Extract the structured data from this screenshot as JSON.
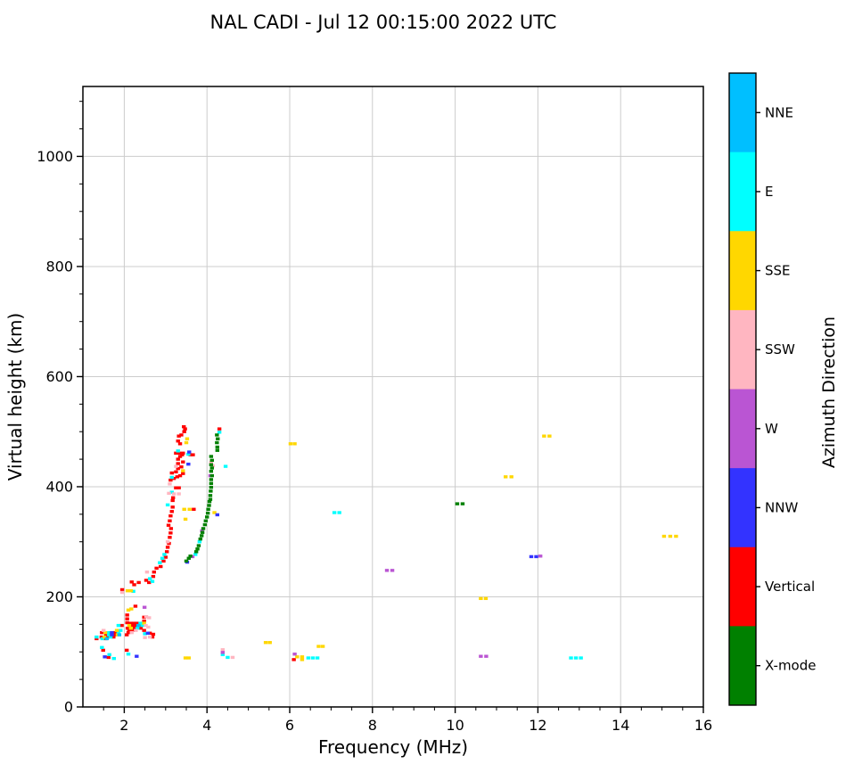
{
  "title": "NAL CADI - Jul 12 00:15:00 2022 UTC",
  "chart_data": {
    "type": "scatter",
    "title": "NAL CADI - Jul 12 00:15:00 2022 UTC",
    "xlabel": "Frequency (MHz)",
    "ylabel": "Virtual height (km)",
    "xlim": [
      1,
      16
    ],
    "ylim": [
      0,
      1127
    ],
    "xticks": [
      2,
      4,
      6,
      8,
      10,
      12,
      14,
      16
    ],
    "yticks": [
      0,
      200,
      400,
      600,
      800,
      1000
    ],
    "x_minor_step": 0.5,
    "y_minor_step": 50,
    "grid": true,
    "grid_color": "#cccccc",
    "marker": "square",
    "colorbar": {
      "label": "Azimuth Direction",
      "orientation": "vertical",
      "categories_top_to_bottom": [
        {
          "label": "NNE",
          "color": "#00BFFF"
        },
        {
          "label": "E",
          "color": "#00FFFF"
        },
        {
          "label": "SSE",
          "color": "#FFD700"
        },
        {
          "label": "SSW",
          "color": "#FFB6C1"
        },
        {
          "label": "W",
          "color": "#BA55D3"
        },
        {
          "label": "NNW",
          "color": "#3333FF"
        },
        {
          "label": "Vertical",
          "color": "#FF0000"
        },
        {
          "label": "X-mode",
          "color": "#008000"
        }
      ]
    },
    "series": [
      {
        "name": "Vertical",
        "color": "#FF0000",
        "points": [
          [
            1.95,
            213
          ],
          [
            2.27,
            183
          ],
          [
            2.07,
            167
          ],
          [
            2.07,
            160
          ],
          [
            2.07,
            153
          ],
          [
            2.48,
            163
          ],
          [
            2.48,
            156
          ],
          [
            2.48,
            139
          ],
          [
            2.62,
            134
          ],
          [
            2.7,
            132
          ],
          [
            2.68,
            127
          ],
          [
            2.15,
            152
          ],
          [
            2.23,
            152
          ],
          [
            2.31,
            152
          ],
          [
            2.45,
            152
          ],
          [
            1.94,
            148
          ],
          [
            2.2,
            148
          ],
          [
            2.28,
            148
          ],
          [
            2.36,
            148
          ],
          [
            2.08,
            143
          ],
          [
            2.24,
            143
          ],
          [
            2.4,
            143
          ],
          [
            2.12,
            139
          ],
          [
            2.2,
            139
          ],
          [
            1.46,
            135
          ],
          [
            1.78,
            135
          ],
          [
            2.1,
            135
          ],
          [
            1.56,
            131
          ],
          [
            1.77,
            131
          ],
          [
            2.06,
            131
          ],
          [
            1.45,
            127
          ],
          [
            1.6,
            127
          ],
          [
            1.74,
            127
          ],
          [
            1.33,
            124
          ],
          [
            1.55,
            124
          ],
          [
            1.49,
            103
          ],
          [
            1.62,
            90
          ],
          [
            2.06,
            103
          ],
          [
            2.18,
            227
          ],
          [
            2.24,
            222
          ],
          [
            2.35,
            226
          ],
          [
            2.53,
            230
          ],
          [
            2.6,
            226
          ],
          [
            2.7,
            237
          ],
          [
            2.72,
            245
          ],
          [
            2.78,
            252
          ],
          [
            2.88,
            255
          ],
          [
            2.95,
            265
          ],
          [
            3.0,
            272
          ],
          [
            3.03,
            282
          ],
          [
            3.05,
            290
          ],
          [
            3.08,
            297
          ],
          [
            3.1,
            308
          ],
          [
            3.12,
            316
          ],
          [
            3.13,
            324
          ],
          [
            3.07,
            330
          ],
          [
            3.1,
            338
          ],
          [
            3.12,
            347
          ],
          [
            3.15,
            355
          ],
          [
            3.17,
            363
          ],
          [
            3.17,
            375
          ],
          [
            3.18,
            380
          ],
          [
            3.68,
            359
          ],
          [
            3.25,
            398
          ],
          [
            3.32,
            398
          ],
          [
            3.12,
            412
          ],
          [
            3.2,
            415
          ],
          [
            3.28,
            418
          ],
          [
            3.35,
            420
          ],
          [
            3.42,
            424
          ],
          [
            3.15,
            425
          ],
          [
            3.25,
            427
          ],
          [
            3.3,
            433
          ],
          [
            3.38,
            436
          ],
          [
            3.3,
            442
          ],
          [
            3.42,
            445
          ],
          [
            3.3,
            450
          ],
          [
            3.35,
            455
          ],
          [
            3.4,
            458
          ],
          [
            3.6,
            458
          ],
          [
            3.66,
            458
          ],
          [
            3.25,
            461
          ],
          [
            3.33,
            461
          ],
          [
            3.42,
            461
          ],
          [
            3.35,
            478
          ],
          [
            3.3,
            483
          ],
          [
            3.32,
            492
          ],
          [
            3.38,
            494
          ],
          [
            3.45,
            500
          ],
          [
            3.47,
            505
          ],
          [
            3.44,
            509
          ],
          [
            4.3,
            505
          ],
          [
            6.1,
            86
          ]
        ]
      },
      {
        "name": "E",
        "color": "#00FFFF",
        "points": [
          [
            1.86,
            148
          ],
          [
            2.44,
            148
          ],
          [
            2.39,
            152
          ],
          [
            2.32,
            143
          ],
          [
            1.91,
            139
          ],
          [
            1.62,
            135
          ],
          [
            1.86,
            135
          ],
          [
            1.63,
            131
          ],
          [
            1.33,
            127
          ],
          [
            1.67,
            127
          ],
          [
            1.47,
            124
          ],
          [
            2.5,
            133
          ],
          [
            1.46,
            108
          ],
          [
            1.64,
            95
          ],
          [
            1.75,
            88
          ],
          [
            2.1,
            96
          ],
          [
            2.22,
            210
          ],
          [
            2.62,
            233
          ],
          [
            2.68,
            228
          ],
          [
            2.86,
            262
          ],
          [
            2.92,
            270
          ],
          [
            2.97,
            277
          ],
          [
            3.05,
            367
          ],
          [
            3.15,
            390
          ],
          [
            3.15,
            417
          ],
          [
            3.3,
            465
          ],
          [
            3.55,
            459
          ],
          [
            3.72,
            277
          ],
          [
            3.82,
            300
          ],
          [
            4.3,
            499
          ],
          [
            4.45,
            437
          ],
          [
            4.38,
            95
          ],
          [
            4.5,
            90
          ],
          [
            6.45,
            89
          ],
          [
            6.56,
            89
          ],
          [
            6.67,
            89
          ],
          [
            7.08,
            353
          ],
          [
            7.2,
            353
          ],
          [
            12.8,
            89
          ],
          [
            12.92,
            89
          ],
          [
            13.04,
            89
          ]
        ]
      },
      {
        "name": "SSE",
        "color": "#FFD700",
        "points": [
          [
            2.08,
            211
          ],
          [
            2.16,
            211
          ],
          [
            2.1,
            176
          ],
          [
            2.17,
            178
          ],
          [
            2.48,
            152
          ],
          [
            2.12,
            148
          ],
          [
            2.16,
            143
          ],
          [
            1.82,
            139
          ],
          [
            1.54,
            135
          ],
          [
            1.84,
            131
          ],
          [
            1.52,
            127
          ],
          [
            3.45,
            359
          ],
          [
            3.58,
            359
          ],
          [
            3.48,
            341
          ],
          [
            3.42,
            429
          ],
          [
            3.5,
            480
          ],
          [
            3.52,
            487
          ],
          [
            4.18,
            353
          ],
          [
            3.48,
            89
          ],
          [
            3.56,
            89
          ],
          [
            5.42,
            117
          ],
          [
            5.52,
            117
          ],
          [
            6.18,
            91
          ],
          [
            6.3,
            91
          ],
          [
            6.3,
            86
          ],
          [
            6.7,
            110
          ],
          [
            6.8,
            110
          ],
          [
            6.02,
            478
          ],
          [
            6.12,
            478
          ],
          [
            10.62,
            197
          ],
          [
            10.74,
            197
          ],
          [
            11.22,
            418
          ],
          [
            11.36,
            418
          ],
          [
            12.15,
            492
          ],
          [
            12.28,
            492
          ],
          [
            15.05,
            310
          ],
          [
            15.2,
            310
          ],
          [
            15.34,
            310
          ]
        ]
      },
      {
        "name": "SSW",
        "color": "#FFB6C1",
        "points": [
          [
            1.95,
            208
          ],
          [
            2.55,
            245
          ],
          [
            3.05,
            300
          ],
          [
            3.08,
            388
          ],
          [
            3.2,
            387
          ],
          [
            3.32,
            387
          ],
          [
            3.1,
            405
          ],
          [
            3.25,
            437
          ],
          [
            4.1,
            444
          ],
          [
            4.14,
            438
          ],
          [
            2.53,
            164
          ],
          [
            2.6,
            162
          ],
          [
            2.52,
            148
          ],
          [
            2.58,
            145
          ],
          [
            2.62,
            127
          ],
          [
            2.5,
            126
          ],
          [
            1.5,
            139
          ],
          [
            2.28,
            139
          ],
          [
            2.18,
            135
          ],
          [
            4.38,
            104
          ],
          [
            4.62,
            90
          ]
        ]
      },
      {
        "name": "W",
        "color": "#BA55D3",
        "points": [
          [
            2.49,
            181
          ],
          [
            3.65,
            273
          ],
          [
            3.88,
            320
          ],
          [
            4.08,
            420
          ],
          [
            6.12,
            96
          ],
          [
            8.35,
            248
          ],
          [
            8.48,
            248
          ],
          [
            10.62,
            92
          ],
          [
            10.75,
            92
          ],
          [
            12.06,
            274
          ],
          [
            4.38,
            99
          ]
        ]
      },
      {
        "name": "NNW",
        "color": "#3333FF",
        "points": [
          [
            1.7,
            135
          ],
          [
            1.7,
            131
          ],
          [
            2.57,
            134
          ],
          [
            1.53,
            91
          ],
          [
            2.3,
            92
          ],
          [
            3.52,
            263
          ],
          [
            3.55,
            441
          ],
          [
            3.57,
            463
          ],
          [
            4.25,
            349
          ],
          [
            11.84,
            273
          ],
          [
            11.96,
            273
          ]
        ]
      },
      {
        "name": "NNE",
        "color": "#00BFFF",
        "points": [
          [
            1.58,
            124
          ],
          [
            1.88,
            131
          ],
          [
            2.34,
            148
          ]
        ]
      },
      {
        "name": "X-mode",
        "color": "#008000",
        "points": [
          [
            3.5,
            265
          ],
          [
            3.56,
            270
          ],
          [
            3.6,
            274
          ],
          [
            3.74,
            282
          ],
          [
            3.77,
            287
          ],
          [
            3.8,
            293
          ],
          [
            3.84,
            305
          ],
          [
            3.87,
            311
          ],
          [
            3.89,
            317
          ],
          [
            3.91,
            324
          ],
          [
            3.95,
            331
          ],
          [
            3.97,
            338
          ],
          [
            4.0,
            345
          ],
          [
            4.02,
            352
          ],
          [
            4.03,
            359
          ],
          [
            4.05,
            366
          ],
          [
            4.06,
            373
          ],
          [
            4.08,
            377
          ],
          [
            4.08,
            384
          ],
          [
            4.09,
            392
          ],
          [
            4.1,
            399
          ],
          [
            4.1,
            406
          ],
          [
            4.1,
            413
          ],
          [
            4.12,
            420
          ],
          [
            4.1,
            428
          ],
          [
            4.12,
            434
          ],
          [
            4.1,
            440
          ],
          [
            4.12,
            448
          ],
          [
            4.1,
            455
          ],
          [
            4.25,
            466
          ],
          [
            4.25,
            472
          ],
          [
            4.24,
            480
          ],
          [
            4.26,
            487
          ],
          [
            4.24,
            494
          ],
          [
            10.05,
            369
          ],
          [
            10.18,
            369
          ]
        ]
      }
    ]
  }
}
